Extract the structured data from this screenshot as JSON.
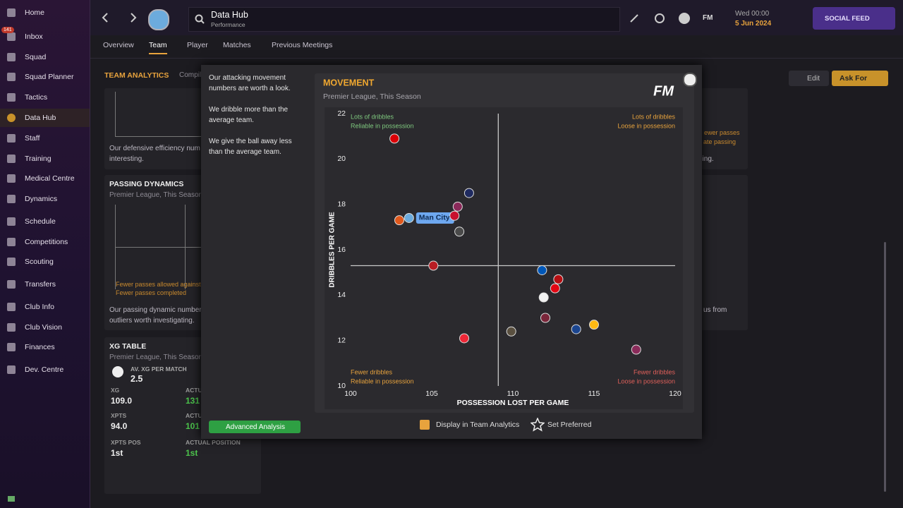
{
  "sidebar": {
    "items": [
      "Home",
      "Inbox",
      "Squad",
      "Squad Planner",
      "Tactics",
      "Data Hub",
      "Staff",
      "Training",
      "Medical Centre",
      "Dynamics",
      "Schedule",
      "Competitions",
      "Scouting",
      "Transfers",
      "Club Info",
      "Club Vision",
      "Finances",
      "Dev. Centre"
    ],
    "inbox_badge": 141
  },
  "header": {
    "title": "Data Hub",
    "subtitle": "Performance",
    "fm": "FM",
    "day_time": "Wed 00:00",
    "date": "5 Jun 2024",
    "social_feed": "SOCIAL FEED"
  },
  "tabs": [
    "Overview",
    "Team",
    "Player",
    "Matches",
    "Previous Meetings"
  ],
  "panels": {
    "team_analytics": "TEAM ANALYTICS",
    "compiled": "Compil",
    "defensive_text": [
      "Our defensive efficiency num",
      "interesting."
    ],
    "passing": {
      "title": "PASSING DYNAMICS",
      "subtitle": "Premier League, This Season",
      "quadrant_lines": [
        "Fewer passes allowed against",
        "Fewer passes completed"
      ],
      "text": [
        "Our passing dynamic number",
        "outliers worth investigating."
      ]
    },
    "xg": {
      "title": "XG TABLE",
      "subtitle": "Premier League, This Season",
      "avg_label": "AV. XG PER MATCH",
      "avg_value": "2.5",
      "stats": [
        {
          "label": "XG",
          "value": "109.0"
        },
        {
          "label": "ACTUAL",
          "value": "131"
        },
        {
          "label": "XPTS",
          "value": "94.0"
        },
        {
          "label": "ACTUAL",
          "value": "101"
        },
        {
          "label": "XPTS POS",
          "value": "1st"
        },
        {
          "label": "ACTUAL POSITION",
          "value": "1st"
        }
      ]
    },
    "edit": "Edit",
    "ask_for": "Ask For",
    "right_fragments": [
      "ewer passes",
      "ate passing",
      "ching.",
      "us from"
    ]
  },
  "modal": {
    "notes": [
      "Our attacking movement numbers are worth a look.",
      "We dribble more than the average team.",
      "We give the ball away less than the average team."
    ],
    "advanced_analysis": "Advanced Analysis",
    "brand": "FM",
    "display_in_team_analytics": "Display in Team Analytics",
    "set_preferred": "Set Preferred"
  },
  "chart_data": {
    "type": "scatter",
    "title": "MOVEMENT",
    "subtitle": "Premier League, This Season",
    "x_label": "POSSESSION LOST PER GAME",
    "y_label": "DRIBBLES PER GAME",
    "xlim": [
      100,
      120
    ],
    "ylim": [
      10,
      22
    ],
    "xticks": [
      100,
      105,
      110,
      115,
      120
    ],
    "yticks": [
      10,
      12,
      14,
      16,
      18,
      20,
      22
    ],
    "average_lines": {
      "x": 109.1,
      "y": 15.3
    },
    "quadrants": [
      {
        "lines": [
          "Lots of dribbles",
          "Reliable in possession"
        ],
        "color": "#7fc97f"
      },
      {
        "lines": [
          "Lots of dribbles",
          "Loose in possession"
        ],
        "color": "#e8a33d"
      },
      {
        "lines": [
          "Fewer dribbles",
          "Reliable in possession"
        ],
        "color": "#e8a33d"
      },
      {
        "lines": [
          "Fewer dribbles",
          "Loose in possession"
        ],
        "color": "#e0605a"
      }
    ],
    "x": [
      102.7,
      103.0,
      103.6,
      106.4,
      106.6,
      107.3,
      106.7,
      105.1,
      111.8,
      112.8,
      112.6,
      111.9,
      112.0,
      115.0,
      113.9,
      109.9,
      107.0,
      117.6
    ],
    "values": [
      20.9,
      17.3,
      17.4,
      17.5,
      17.9,
      18.5,
      16.8,
      15.3,
      15.1,
      14.7,
      14.3,
      13.9,
      13.0,
      12.7,
      12.5,
      12.4,
      12.1,
      11.6
    ],
    "labels": [
      null,
      null,
      "Man City",
      null,
      null,
      null,
      null,
      null,
      null,
      null,
      null,
      null,
      null,
      null,
      null,
      null,
      null,
      null
    ],
    "colors": [
      "#db0007",
      "#e0581c",
      "#6cabdd",
      "#c8102e",
      "#8a2a5a",
      "#1f2a60",
      "#4a4a4a",
      "#b81d24",
      "#0057b8",
      "#b50e12",
      "#e30613",
      "#f2f2f2",
      "#7a263a",
      "#fdb913",
      "#1b458f",
      "#5a5040",
      "#ee2737",
      "#8a2b5a"
    ],
    "label_color": "#6ea8f0"
  }
}
